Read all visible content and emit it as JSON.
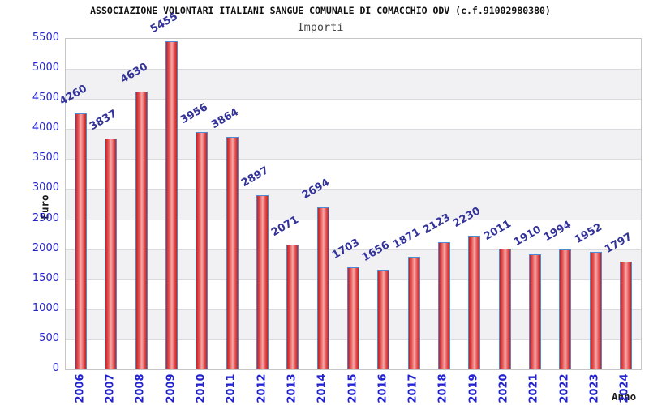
{
  "chart_data": {
    "type": "bar",
    "title": "ASSOCIAZIONE VOLONTARI ITALIANI SANGUE COMUNALE DI COMACCHIO ODV (c.f.91002980380)",
    "subtitle": "Importi",
    "xlabel": "Anno",
    "ylabel": "Euro",
    "categories": [
      "2006",
      "2007",
      "2008",
      "2009",
      "2010",
      "2011",
      "2012",
      "2013",
      "2014",
      "2015",
      "2016",
      "2017",
      "2018",
      "2019",
      "2020",
      "2021",
      "2022",
      "2023",
      "2024"
    ],
    "values": [
      4260,
      3837,
      4630,
      5455,
      3956,
      3864,
      2897,
      2071,
      2694,
      1703,
      1656,
      1871,
      2123,
      2230,
      2011,
      1910,
      1994,
      1952,
      1797
    ],
    "ylim": [
      0,
      5500
    ],
    "ytick_step": 500,
    "grid": "horizontal gridlines with alternating white/grey bands",
    "legend": "none",
    "colors": {
      "axis-text": "#2323cf",
      "value-text": "#333399",
      "title-text": "#111111",
      "subtitle-text": "#454545",
      "bar-edge": "#c22121",
      "bar-mid": "#e25050",
      "bar-center": "#f7a8a8",
      "bar-border": "#4d8bd3",
      "band-alt": "#f1f1f4",
      "grid-line": "#dbdbdf",
      "plot-border": "#c6c6c6"
    }
  }
}
